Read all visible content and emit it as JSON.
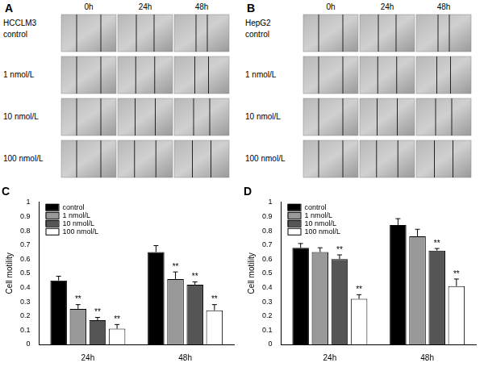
{
  "panels": [
    {
      "label": "A",
      "cell_line": "HCCLM3",
      "columns": [
        "0h",
        "24h",
        "48h"
      ],
      "rows": [
        "control",
        "1 nmol/L",
        "10 nmol/L",
        "100 nmol/L"
      ]
    },
    {
      "label": "B",
      "cell_line": "HepG2",
      "columns": [
        "0h",
        "24h",
        "48h"
      ],
      "rows": [
        "control",
        "1 nmol/L",
        "10 nmol/L",
        "100 nmol/L"
      ]
    }
  ],
  "chart_data": [
    {
      "type": "bar",
      "title": "C",
      "ylabel": "Cell motility",
      "categories": [
        "24h",
        "48h"
      ],
      "ylim": [
        0,
        1
      ],
      "yticks": [
        0,
        0.1,
        0.2,
        0.3,
        0.4,
        0.5,
        0.6,
        0.7,
        0.8,
        0.9,
        1
      ],
      "grid": false,
      "legend": "upper left",
      "series": [
        {
          "name": "control",
          "color": "#000000",
          "values": [
            0.45,
            0.65
          ],
          "errors": [
            0.03,
            0.045
          ],
          "significance": [
            null,
            null
          ]
        },
        {
          "name": "1 nmol/L",
          "color": "#999999",
          "values": [
            0.25,
            0.46
          ],
          "errors": [
            0.03,
            0.05
          ],
          "significance": [
            "**",
            "**"
          ]
        },
        {
          "name": "10 nmol/L",
          "color": "#555555",
          "values": [
            0.17,
            0.42
          ],
          "errors": [
            0.02,
            0.02
          ],
          "significance": [
            "**",
            "**"
          ]
        },
        {
          "name": "100 nmol/L",
          "color": "#ffffff",
          "values": [
            0.11,
            0.24
          ],
          "errors": [
            0.03,
            0.04
          ],
          "significance": [
            "**",
            "**"
          ]
        }
      ]
    },
    {
      "type": "bar",
      "title": "D",
      "ylabel": "Cell motility",
      "categories": [
        "24h",
        "48h"
      ],
      "ylim": [
        0,
        1
      ],
      "yticks": [
        0,
        0.1,
        0.2,
        0.3,
        0.4,
        0.5,
        0.6,
        0.7,
        0.8,
        0.9,
        1
      ],
      "grid": false,
      "legend": "upper left",
      "series": [
        {
          "name": "control",
          "color": "#000000",
          "values": [
            0.68,
            0.84
          ],
          "errors": [
            0.03,
            0.045
          ],
          "significance": [
            null,
            null
          ]
        },
        {
          "name": "1 nmol/L",
          "color": "#999999",
          "values": [
            0.65,
            0.76
          ],
          "errors": [
            0.03,
            0.05
          ],
          "significance": [
            null,
            null
          ]
        },
        {
          "name": "10 nmol/L",
          "color": "#555555",
          "values": [
            0.6,
            0.66
          ],
          "errors": [
            0.03,
            0.015
          ],
          "significance": [
            "**",
            "**"
          ]
        },
        {
          "name": "100 nmol/L",
          "color": "#ffffff",
          "values": [
            0.32,
            0.41
          ],
          "errors": [
            0.03,
            0.05
          ],
          "significance": [
            "**",
            "**"
          ]
        }
      ]
    }
  ]
}
